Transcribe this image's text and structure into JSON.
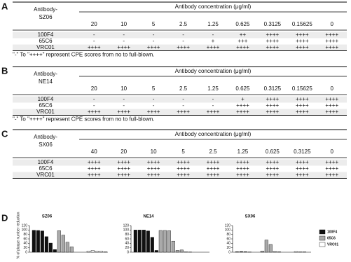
{
  "tables": [
    {
      "label": "A",
      "row_header": [
        "Antibody-",
        "SZ06"
      ],
      "column_header": "Antibody concentration (μg/ml)",
      "concentrations": [
        20,
        10,
        5,
        2.5,
        1.25,
        0.625,
        0.3125,
        0.15625,
        0
      ],
      "rows": [
        {
          "name": "100F4",
          "scores": [
            "-",
            "-",
            "-",
            "-",
            "-",
            "++",
            "++++",
            "++++",
            "++++"
          ]
        },
        {
          "name": "65C6",
          "scores": [
            "-",
            "-",
            "-",
            "-",
            "+",
            "+++",
            "++++",
            "++++",
            "++++"
          ]
        },
        {
          "name": "VRC01",
          "scores": [
            "++++",
            "++++",
            "++++",
            "++++",
            "++++",
            "++++",
            "++++",
            "++++",
            "++++"
          ]
        }
      ],
      "footnote": "\"-\" To \"++++\" represent CPE scores from no to full-blown."
    },
    {
      "label": "B",
      "row_header": [
        "Antibody-",
        "NE14"
      ],
      "column_header": "Antibody concentration (μg/ml)",
      "concentrations": [
        20,
        10,
        5,
        2.5,
        1.25,
        0.625,
        0.3125,
        0.15625,
        0
      ],
      "rows": [
        {
          "name": "100F4",
          "scores": [
            "-",
            "-",
            "-",
            "-",
            "-",
            "+",
            "++++",
            "++++",
            "++++"
          ]
        },
        {
          "name": "65C6",
          "scores": [
            "-",
            "-",
            "-",
            "-",
            "-",
            "++++",
            "++++",
            "++++",
            "++++"
          ]
        },
        {
          "name": "VRC01",
          "scores": [
            "++++",
            "++++",
            "++++",
            "++++",
            "++++",
            "++++",
            "++++",
            "++++",
            "++++"
          ]
        }
      ],
      "footnote": "\"-\" To \"++++\" represent CPE scores from no to full-blown."
    },
    {
      "label": "C",
      "row_header": [
        "Antibody-",
        "SX06"
      ],
      "column_header": "Antibody concentration (μg/ml)",
      "concentrations": [
        40,
        20,
        10,
        5,
        2.5,
        1.25,
        0.625,
        0.3125,
        0
      ],
      "rows": [
        {
          "name": "100F4",
          "scores": [
            "++++",
            "++++",
            "++++",
            "++++",
            "++++",
            "++++",
            "++++",
            "++++",
            "++++"
          ]
        },
        {
          "name": "65C6",
          "scores": [
            "++++",
            "++++",
            "++++",
            "++++",
            "++++",
            "++++",
            "++++",
            "++++",
            "++++"
          ]
        },
        {
          "name": "VRC01",
          "scores": [
            "++++",
            "++++",
            "++++",
            "++++",
            "++++",
            "++++",
            "++++",
            "++++",
            "++++"
          ]
        }
      ]
    }
  ],
  "chart_label": "D",
  "chart_data": [
    {
      "type": "bar",
      "title": "SZ06",
      "ylabel": "% of plaque number reduction",
      "ylim": [
        0,
        120
      ],
      "yticks": [
        0,
        20,
        40,
        60,
        80,
        100,
        120
      ],
      "series": [
        {
          "name": "100F4",
          "color": "#111111",
          "values": [
            99,
            98,
            96,
            70,
            41,
            12
          ]
        },
        {
          "name": "65C6",
          "color": "#aaaaaa",
          "values": [
            97,
            77,
            45,
            24,
            0,
            0
          ]
        },
        {
          "name": "VRC01",
          "color": "#ffffff",
          "values": [
            0,
            5,
            8,
            4,
            5,
            2
          ]
        }
      ]
    },
    {
      "type": "bar",
      "title": "NE14",
      "ylim": [
        0,
        120
      ],
      "yticks": [
        0,
        20,
        40,
        60,
        80,
        100,
        120
      ],
      "series": [
        {
          "color": "#111111",
          "values": [
            100,
            100,
            100,
            96,
            67,
            8
          ]
        },
        {
          "color": "#aaaaaa",
          "values": [
            98,
            98,
            97,
            50,
            8,
            10
          ]
        },
        {
          "color": "#ffffff",
          "values": [
            2,
            1,
            0,
            0,
            0,
            0
          ]
        }
      ]
    },
    {
      "type": "bar",
      "title": "SX06",
      "ylim": [
        0,
        120
      ],
      "yticks": [
        0,
        20,
        40,
        60,
        80,
        100,
        120
      ],
      "series": [
        {
          "color": "#111111",
          "values": [
            2,
            3,
            2,
            1,
            0,
            0
          ]
        },
        {
          "color": "#aaaaaa",
          "values": [
            5,
            55,
            35,
            3,
            2,
            0
          ]
        },
        {
          "color": "#ffffff",
          "values": [
            0,
            0,
            3,
            2,
            2,
            0
          ]
        }
      ]
    }
  ]
}
